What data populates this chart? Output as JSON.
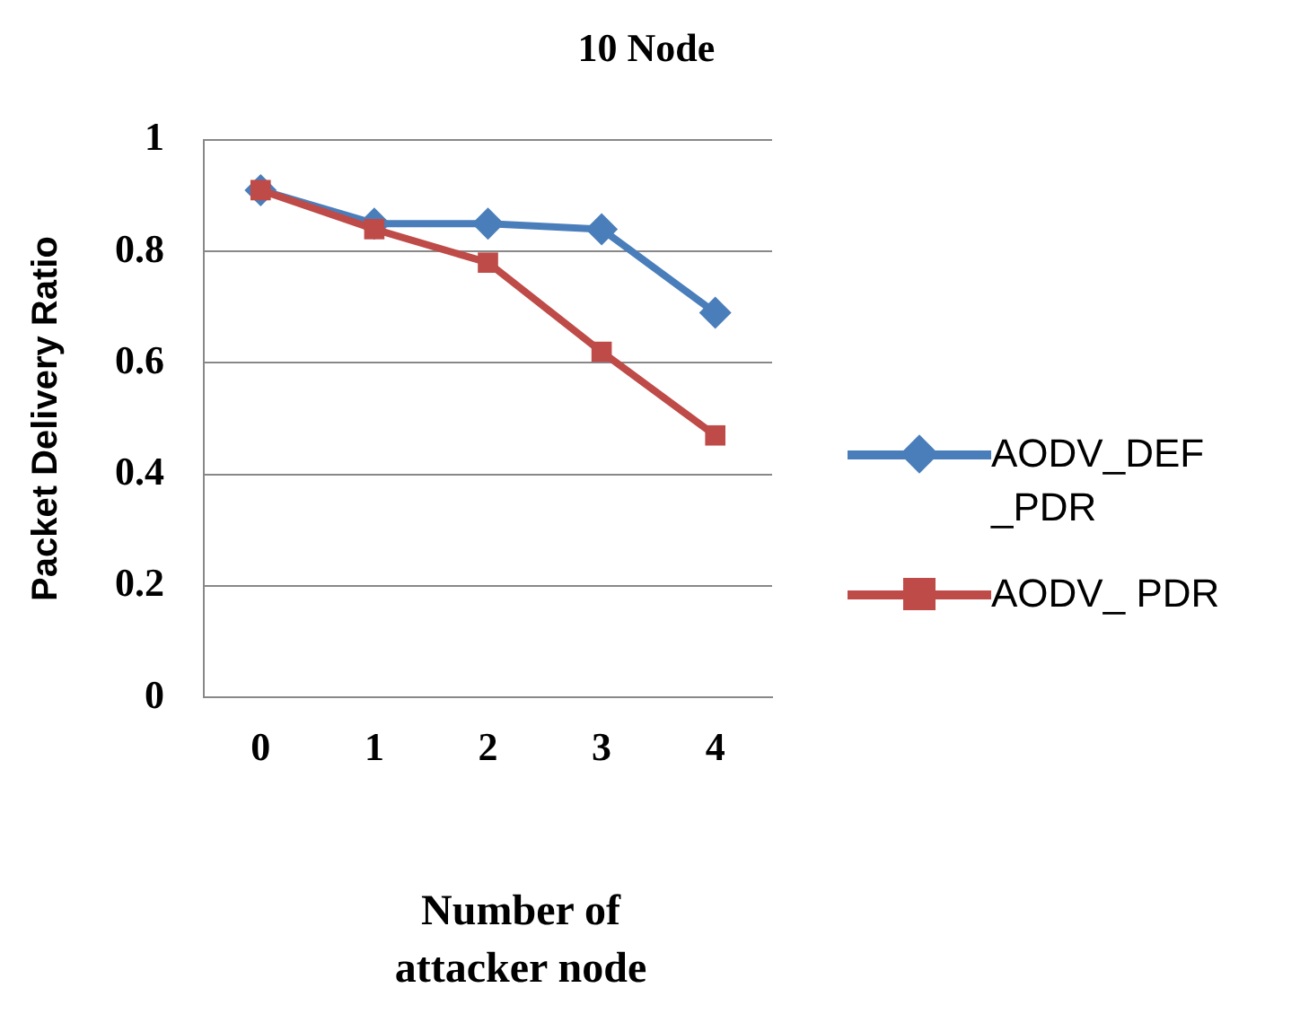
{
  "chart_data": {
    "type": "line",
    "title": "10 Node",
    "xlabel": "Number of attacker node",
    "ylabel": "Packet Delivery Ratio",
    "categories": [
      "0",
      "1",
      "2",
      "3",
      "4"
    ],
    "series": [
      {
        "name": "AODV_DEF_PDR",
        "color": "#4a7ebb",
        "marker": "diamond",
        "values": [
          0.91,
          0.85,
          0.85,
          0.84,
          0.69
        ]
      },
      {
        "name": "AODV_ PDR",
        "color": "#be4b48",
        "marker": "square",
        "values": [
          0.91,
          0.84,
          0.78,
          0.62,
          0.47
        ]
      }
    ],
    "ylim": [
      0,
      1
    ],
    "yticks": [
      0,
      0.2,
      0.4,
      0.6,
      0.8,
      1
    ],
    "grid": "y",
    "legend": "right"
  }
}
